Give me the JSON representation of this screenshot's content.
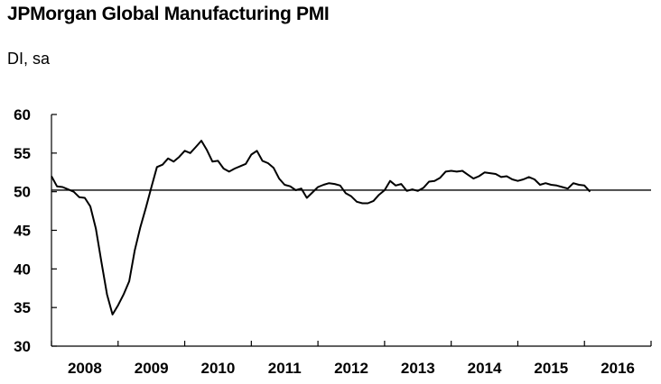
{
  "chart_data": {
    "type": "line",
    "title": "JPMorgan Global Manufacturing PMI",
    "subtitle": "DI, sa",
    "xlabel": "",
    "ylabel": "",
    "ylim": [
      30,
      60
    ],
    "yticks": [
      "30",
      "35",
      "40",
      "45",
      "50",
      "55",
      "60"
    ],
    "xticks": [
      "2008",
      "2009",
      "2010",
      "2011",
      "2012",
      "2013",
      "2014",
      "2015",
      "2016"
    ],
    "xlim": [
      "2008-01",
      "2016-12"
    ],
    "reference_line": 50.2,
    "grid": false,
    "legend": "none",
    "line_color": "#000000",
    "series": [
      {
        "x": [
          "2008-01",
          "2008-02",
          "2008-03",
          "2008-04",
          "2008-05",
          "2008-06",
          "2008-07",
          "2008-08",
          "2008-09",
          "2008-10",
          "2008-11",
          "2008-12",
          "2009-01",
          "2009-02",
          "2009-03",
          "2009-04",
          "2009-05",
          "2009-06",
          "2009-07",
          "2009-08",
          "2009-09",
          "2009-10",
          "2009-11",
          "2009-12",
          "2010-01",
          "2010-02",
          "2010-03",
          "2010-04",
          "2010-05",
          "2010-06",
          "2010-07",
          "2010-08",
          "2010-09",
          "2010-10",
          "2010-11",
          "2010-12",
          "2011-01",
          "2011-02",
          "2011-03",
          "2011-04",
          "2011-05",
          "2011-06",
          "2011-07",
          "2011-08",
          "2011-09",
          "2011-10",
          "2011-11",
          "2011-12",
          "2012-01",
          "2012-02",
          "2012-03",
          "2012-04",
          "2012-05",
          "2012-06",
          "2012-07",
          "2012-08",
          "2012-09",
          "2012-10",
          "2012-11",
          "2012-12",
          "2013-01",
          "2013-02",
          "2013-03",
          "2013-04",
          "2013-05",
          "2013-06",
          "2013-07",
          "2013-08",
          "2013-09",
          "2013-10",
          "2013-11",
          "2013-12",
          "2014-01",
          "2014-02",
          "2014-03",
          "2014-04",
          "2014-05",
          "2014-06",
          "2014-07",
          "2014-08",
          "2014-09",
          "2014-10",
          "2014-11",
          "2014-12",
          "2015-01",
          "2015-02",
          "2015-03",
          "2015-04",
          "2015-05",
          "2015-06",
          "2015-07",
          "2015-08",
          "2015-09",
          "2015-10",
          "2015-11",
          "2015-12",
          "2016-01",
          "2016-02"
        ],
        "values": [
          52.0,
          50.7,
          50.6,
          50.3,
          50.0,
          49.3,
          49.2,
          48.1,
          45.2,
          40.9,
          36.7,
          34.1,
          35.3,
          36.7,
          38.4,
          42.4,
          45.4,
          47.9,
          50.6,
          53.2,
          53.5,
          54.3,
          53.9,
          54.5,
          55.3,
          55.0,
          55.8,
          56.6,
          55.4,
          53.9,
          54.0,
          53.0,
          52.6,
          53.0,
          53.3,
          53.6,
          54.8,
          55.3,
          54.0,
          53.7,
          53.1,
          51.7,
          50.9,
          50.7,
          50.2,
          50.4,
          49.2,
          49.9,
          50.6,
          50.9,
          51.1,
          51.0,
          50.8,
          49.8,
          49.4,
          48.7,
          48.5,
          48.5,
          48.8,
          49.6,
          50.2,
          51.4,
          50.8,
          51.0,
          50.1,
          50.3,
          50.1,
          50.5,
          51.3,
          51.4,
          51.8,
          52.6,
          52.7,
          52.6,
          52.7,
          52.2,
          51.7,
          52.0,
          52.5,
          52.4,
          52.3,
          51.9,
          52.0,
          51.6,
          51.4,
          51.6,
          51.9,
          51.6,
          50.9,
          51.1,
          50.9,
          50.8,
          50.6,
          50.4,
          51.1,
          50.9,
          50.8,
          50.0
        ]
      }
    ]
  }
}
